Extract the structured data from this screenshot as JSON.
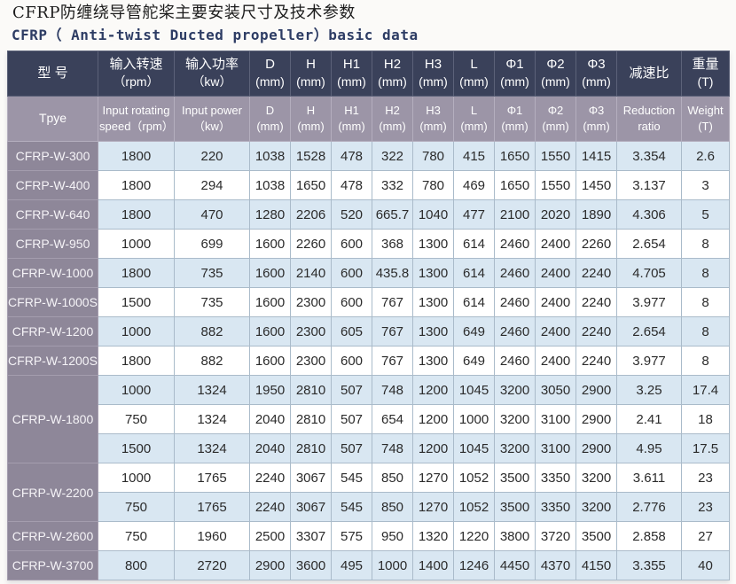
{
  "page": {
    "title_cn": "CFRP防缠绕导管舵桨主要安装尺寸及技术参数",
    "title_en": "CFRP（ Anti-twist Ducted propeller）basic data"
  },
  "colors": {
    "header_bg": "#3a415a",
    "subheader_bg": "#9c95a7",
    "model_column_bg": "#8e8799",
    "row_blue": "#d9e7f2",
    "row_white": "#ffffff",
    "cell_border": "#aabbca",
    "title_en_color": "#2d3c64",
    "header_text": "#ffffff",
    "data_text": "#2b2b2b"
  },
  "table": {
    "header_row1": [
      {
        "line1": "型 号",
        "line2": ""
      },
      {
        "line1": "输入转速",
        "line2": "（rpm）"
      },
      {
        "line1": "输入功率",
        "line2": "（kw）"
      },
      {
        "line1": "D",
        "line2": "(mm)"
      },
      {
        "line1": "H",
        "line2": "(mm)"
      },
      {
        "line1": "H1",
        "line2": "(mm)"
      },
      {
        "line1": "H2",
        "line2": "(mm)"
      },
      {
        "line1": "H3",
        "line2": "(mm)"
      },
      {
        "line1": "L",
        "line2": "(mm)"
      },
      {
        "line1": "Φ1",
        "line2": "(mm)"
      },
      {
        "line1": "Φ2",
        "line2": "(mm)"
      },
      {
        "line1": "Φ3",
        "line2": "(mm)"
      },
      {
        "line1": "减速比",
        "line2": ""
      },
      {
        "line1": "重量",
        "line2": "(T)"
      }
    ],
    "header_row2": [
      {
        "line1": "Tpye",
        "line2": ""
      },
      {
        "line1": "Input rotating",
        "line2": "speed（rpm）"
      },
      {
        "line1": "Input power",
        "line2": "（kw）"
      },
      {
        "line1": "D",
        "line2": "(mm)"
      },
      {
        "line1": "H",
        "line2": "(mm)"
      },
      {
        "line1": "H1",
        "line2": "(mm)"
      },
      {
        "line1": "H2",
        "line2": "(mm)"
      },
      {
        "line1": "H3",
        "line2": "(mm)"
      },
      {
        "line1": "L",
        "line2": "(mm)"
      },
      {
        "line1": "Φ1",
        "line2": "(mm)"
      },
      {
        "line1": "Φ2",
        "line2": "(mm)"
      },
      {
        "line1": "Φ3",
        "line2": "(mm)"
      },
      {
        "line1": "Reduction",
        "line2": "ratio"
      },
      {
        "line1": "Weight",
        "line2": "(T)"
      }
    ],
    "groups": [
      {
        "model": "CFRP-W-300",
        "rows": [
          [
            "1800",
            "220",
            "1038",
            "1528",
            "478",
            "322",
            "780",
            "415",
            "1650",
            "1550",
            "1415",
            "3.354",
            "2.6"
          ]
        ]
      },
      {
        "model": "CFRP-W-400",
        "rows": [
          [
            "1800",
            "294",
            "1038",
            "1650",
            "478",
            "332",
            "780",
            "469",
            "1650",
            "1550",
            "1450",
            "3.137",
            "3"
          ]
        ]
      },
      {
        "model": "CFRP-W-640",
        "rows": [
          [
            "1800",
            "470",
            "1280",
            "2206",
            "520",
            "665.7",
            "1040",
            "477",
            "2100",
            "2020",
            "1890",
            "4.306",
            "5"
          ]
        ]
      },
      {
        "model": "CFRP-W-950",
        "rows": [
          [
            "1000",
            "699",
            "1600",
            "2260",
            "600",
            "368",
            "1300",
            "614",
            "2460",
            "2400",
            "2260",
            "2.654",
            "8"
          ]
        ]
      },
      {
        "model": "CFRP-W-1000",
        "rows": [
          [
            "1800",
            "735",
            "1600",
            "2140",
            "600",
            "435.8",
            "1300",
            "614",
            "2460",
            "2400",
            "2240",
            "4.705",
            "8"
          ]
        ]
      },
      {
        "model": "CFRP-W-1000S",
        "rows": [
          [
            "1500",
            "735",
            "1600",
            "2300",
            "600",
            "767",
            "1300",
            "614",
            "2460",
            "2400",
            "2240",
            "3.977",
            "8"
          ]
        ]
      },
      {
        "model": "CFRP-W-1200",
        "rows": [
          [
            "1000",
            "882",
            "1600",
            "2300",
            "605",
            "767",
            "1300",
            "649",
            "2460",
            "2400",
            "2240",
            "2.654",
            "8"
          ]
        ]
      },
      {
        "model": "CFRP-W-1200S",
        "rows": [
          [
            "1800",
            "882",
            "1600",
            "2300",
            "600",
            "767",
            "1300",
            "649",
            "2460",
            "2400",
            "2240",
            "3.977",
            "8"
          ]
        ]
      },
      {
        "model": "CFRP-W-1800",
        "rows": [
          [
            "1000",
            "1324",
            "1950",
            "2810",
            "507",
            "748",
            "1200",
            "1045",
            "3200",
            "3050",
            "2900",
            "3.25",
            "17.4"
          ],
          [
            "750",
            "1324",
            "2040",
            "2810",
            "507",
            "654",
            "1200",
            "1000",
            "3200",
            "3100",
            "2900",
            "2.41",
            "18"
          ],
          [
            "1500",
            "1324",
            "2040",
            "2810",
            "507",
            "748",
            "1200",
            "1045",
            "3200",
            "3100",
            "2900",
            "4.95",
            "17.5"
          ]
        ]
      },
      {
        "model": "CFRP-W-2200",
        "rows": [
          [
            "1000",
            "1765",
            "2240",
            "3067",
            "545",
            "850",
            "1270",
            "1052",
            "3500",
            "3350",
            "3200",
            "3.611",
            "23"
          ],
          [
            "750",
            "1765",
            "2240",
            "3067",
            "545",
            "850",
            "1270",
            "1052",
            "3500",
            "3350",
            "3200",
            "2.776",
            "23"
          ]
        ]
      },
      {
        "model": "CFRP-W-2600",
        "rows": [
          [
            "750",
            "1960",
            "2500",
            "3307",
            "575",
            "950",
            "1320",
            "1220",
            "3800",
            "3720",
            "3500",
            "2.858",
            "27"
          ]
        ]
      },
      {
        "model": "CFRP-W-3700",
        "rows": [
          [
            "800",
            "2720",
            "2900",
            "3600",
            "495",
            "1000",
            "1400",
            "1246",
            "4450",
            "4370",
            "4150",
            "3.355",
            "40"
          ]
        ]
      }
    ]
  }
}
